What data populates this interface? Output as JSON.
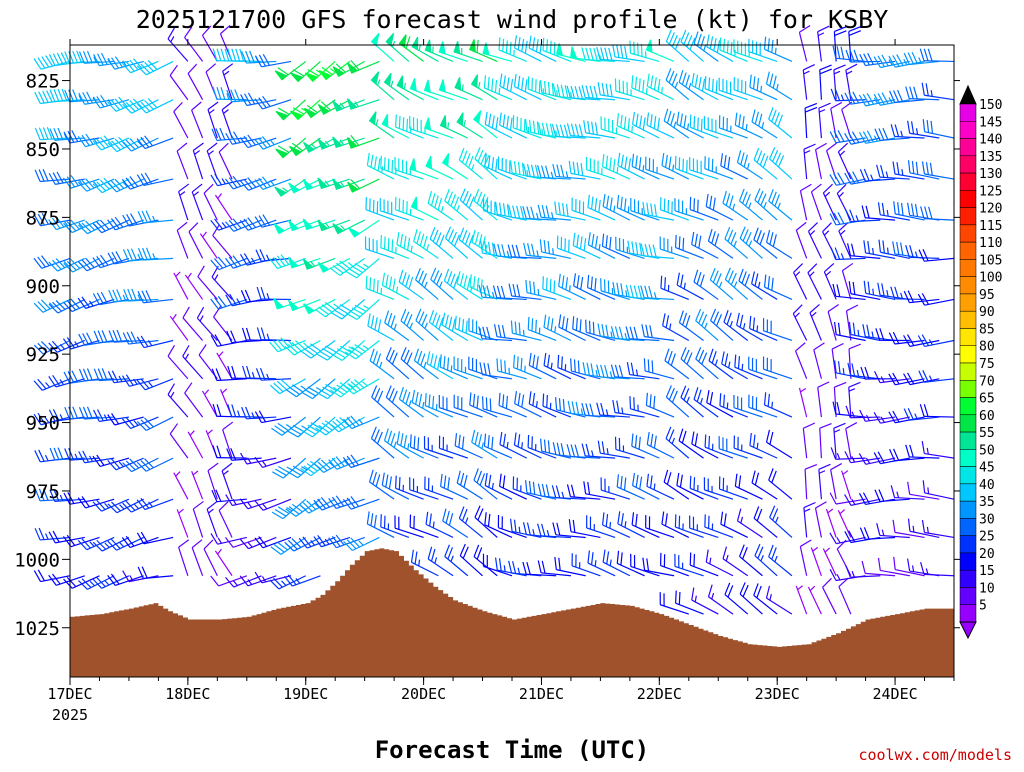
{
  "chart_data": {
    "type": "wind-barb-profile",
    "title": "2025121700 GFS forecast wind profile (kt) for KSBY",
    "xlabel": "Forecast Time (UTC)",
    "ylabel": "",
    "credit": "coolwx.com/models",
    "x_ticks": [
      {
        "label": "17DEC",
        "sub": "2025",
        "hour": 0
      },
      {
        "label": "18DEC",
        "sub": "",
        "hour": 24
      },
      {
        "label": "19DEC",
        "sub": "",
        "hour": 48
      },
      {
        "label": "20DEC",
        "sub": "",
        "hour": 72
      },
      {
        "label": "21DEC",
        "sub": "",
        "hour": 96
      },
      {
        "label": "22DEC",
        "sub": "",
        "hour": 120
      },
      {
        "label": "23DEC",
        "sub": "",
        "hour": 144
      },
      {
        "label": "24DEC",
        "sub": "",
        "hour": 168
      }
    ],
    "x_range_hours": [
      0,
      180
    ],
    "y_ticks": [
      825,
      850,
      875,
      900,
      925,
      950,
      975,
      1000,
      1025
    ],
    "y_range_hpa": [
      812,
      1043
    ],
    "barb_levels_hpa": [
      818,
      832,
      846,
      861,
      876,
      890,
      905,
      920,
      934,
      948,
      963,
      978,
      992,
      1006,
      1020
    ],
    "barb_interval_hours": 3,
    "colorbar": {
      "labels": [
        "150",
        "145",
        "140",
        "135",
        "130",
        "125",
        "120",
        "115",
        "110",
        "105",
        "100",
        "95",
        "90",
        "85",
        "80",
        "75",
        "70",
        "65",
        "60",
        "55",
        "50",
        "45",
        "40",
        "35",
        "30",
        "25",
        "20",
        "15",
        "10",
        "5"
      ],
      "colors": [
        "#e600e6",
        "#ff00c8",
        "#ff0096",
        "#ff0064",
        "#ff0032",
        "#ff0000",
        "#ff1e00",
        "#ff4600",
        "#ff6400",
        "#ff7800",
        "#ff8c00",
        "#ffa000",
        "#ffbe00",
        "#ffe600",
        "#ffff00",
        "#c8ff00",
        "#78ff00",
        "#00ff32",
        "#00e646",
        "#00e696",
        "#00ffc8",
        "#00e6e6",
        "#00c8ff",
        "#0096ff",
        "#0064ff",
        "#0032ff",
        "#0000ff",
        "#3200ff",
        "#6400ff",
        "#9600ff"
      ]
    },
    "surface_pressure_hpa": [
      {
        "hour": 0,
        "hpa": 1021
      },
      {
        "hour": 6,
        "hpa": 1020
      },
      {
        "hour": 12,
        "hpa": 1018
      },
      {
        "hour": 17,
        "hpa": 1016
      },
      {
        "hour": 20,
        "hpa": 1019
      },
      {
        "hour": 24,
        "hpa": 1022
      },
      {
        "hour": 30,
        "hpa": 1022
      },
      {
        "hour": 36,
        "hpa": 1021
      },
      {
        "hour": 42,
        "hpa": 1018
      },
      {
        "hour": 48,
        "hpa": 1016
      },
      {
        "hour": 51,
        "hpa": 1013
      },
      {
        "hour": 54,
        "hpa": 1008
      },
      {
        "hour": 57,
        "hpa": 1002
      },
      {
        "hour": 60,
        "hpa": 997
      },
      {
        "hour": 63,
        "hpa": 996
      },
      {
        "hour": 66,
        "hpa": 997
      },
      {
        "hour": 70,
        "hpa": 1004
      },
      {
        "hour": 74,
        "hpa": 1010
      },
      {
        "hour": 78,
        "hpa": 1015
      },
      {
        "hour": 84,
        "hpa": 1019
      },
      {
        "hour": 90,
        "hpa": 1022
      },
      {
        "hour": 96,
        "hpa": 1020
      },
      {
        "hour": 102,
        "hpa": 1018
      },
      {
        "hour": 108,
        "hpa": 1016
      },
      {
        "hour": 114,
        "hpa": 1017
      },
      {
        "hour": 120,
        "hpa": 1020
      },
      {
        "hour": 126,
        "hpa": 1024
      },
      {
        "hour": 132,
        "hpa": 1028
      },
      {
        "hour": 138,
        "hpa": 1031
      },
      {
        "hour": 144,
        "hpa": 1032
      },
      {
        "hour": 150,
        "hpa": 1031
      },
      {
        "hour": 156,
        "hpa": 1027
      },
      {
        "hour": 162,
        "hpa": 1022
      },
      {
        "hour": 168,
        "hpa": 1020
      },
      {
        "hour": 174,
        "hpa": 1018
      },
      {
        "hour": 180,
        "hpa": 1018
      }
    ],
    "wind_regimes": [
      {
        "hour_start": 0,
        "hour_end": 22,
        "dir_deg": 255,
        "speed_kt_upper": 38,
        "speed_kt_lower": 20
      },
      {
        "hour_start": 22,
        "hour_end": 36,
        "dir_deg": 330,
        "speed_kt_upper": 12,
        "speed_kt_lower": 8
      },
      {
        "hour_start": 36,
        "hour_end": 46,
        "dir_deg": 260,
        "speed_kt_upper": 35,
        "speed_kt_lower": 12
      },
      {
        "hour_start": 46,
        "hour_end": 66,
        "dir_deg": 240,
        "speed_kt_upper": 62,
        "speed_kt_lower": 25
      },
      {
        "hour_start": 66,
        "hour_end": 90,
        "dir_deg": 300,
        "speed_kt_upper": 55,
        "speed_kt_lower": 20
      },
      {
        "hour_start": 90,
        "hour_end": 126,
        "dir_deg": 285,
        "speed_kt_upper": 45,
        "speed_kt_lower": 20
      },
      {
        "hour_start": 126,
        "hour_end": 150,
        "dir_deg": 300,
        "speed_kt_upper": 40,
        "speed_kt_lower": 18
      },
      {
        "hour_start": 150,
        "hour_end": 162,
        "dir_deg": 345,
        "speed_kt_upper": 15,
        "speed_kt_lower": 8
      },
      {
        "hour_start": 162,
        "hour_end": 180,
        "dir_deg": 270,
        "speed_kt_upper": 32,
        "speed_kt_lower": 12
      }
    ]
  }
}
